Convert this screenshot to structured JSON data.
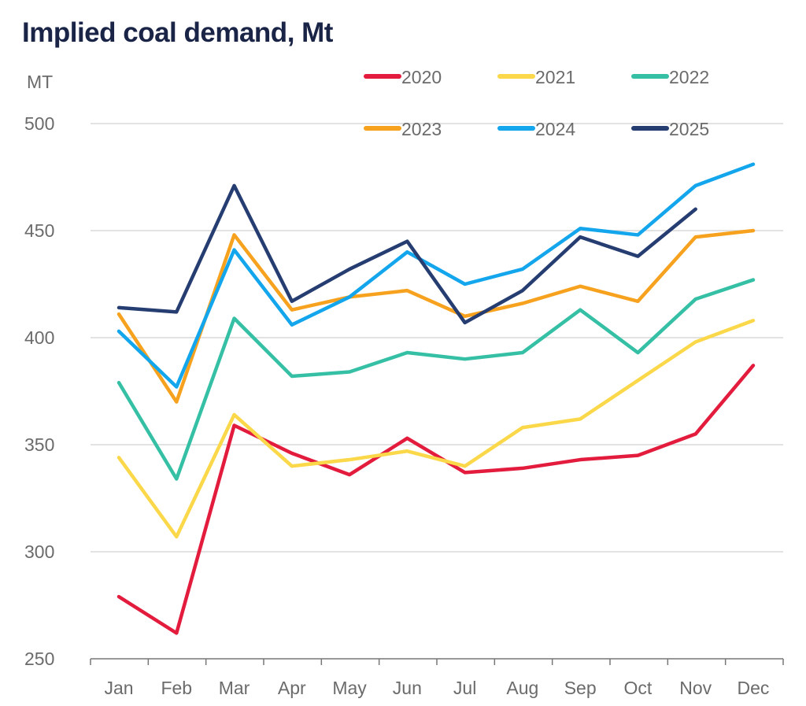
{
  "chart_data": {
    "type": "line",
    "title": "Implied coal demand, Mt",
    "ylabel": "MT",
    "xlabel": "",
    "ylim": [
      250,
      500
    ],
    "yticks": [
      250,
      300,
      350,
      400,
      450,
      500
    ],
    "grid": true,
    "legend_position": "top-right",
    "categories": [
      "Jan",
      "Feb",
      "Mar",
      "Apr",
      "May",
      "Jun",
      "Jul",
      "Aug",
      "Sep",
      "Oct",
      "Nov",
      "Dec"
    ],
    "series": [
      {
        "name": "2020",
        "color": "#e31c3d",
        "values": [
          279,
          262,
          359,
          346,
          336,
          353,
          337,
          339,
          343,
          345,
          355,
          387
        ]
      },
      {
        "name": "2021",
        "color": "#fbd84a",
        "values": [
          344,
          307,
          364,
          340,
          343,
          347,
          340,
          358,
          362,
          380,
          398,
          408
        ]
      },
      {
        "name": "2022",
        "color": "#35c0a5",
        "values": [
          379,
          334,
          409,
          382,
          384,
          393,
          390,
          393,
          413,
          393,
          418,
          427
        ]
      },
      {
        "name": "2023",
        "color": "#f7a21e",
        "values": [
          411,
          370,
          448,
          413,
          419,
          422,
          410,
          416,
          424,
          417,
          447,
          450
        ]
      },
      {
        "name": "2024",
        "color": "#13a6ec",
        "values": [
          403,
          377,
          441,
          406,
          419,
          440,
          425,
          432,
          451,
          448,
          471,
          481
        ]
      },
      {
        "name": "2025",
        "color": "#253d71",
        "values": [
          414,
          412,
          471,
          417,
          432,
          445,
          407,
          422,
          447,
          438,
          460,
          null
        ]
      }
    ]
  }
}
